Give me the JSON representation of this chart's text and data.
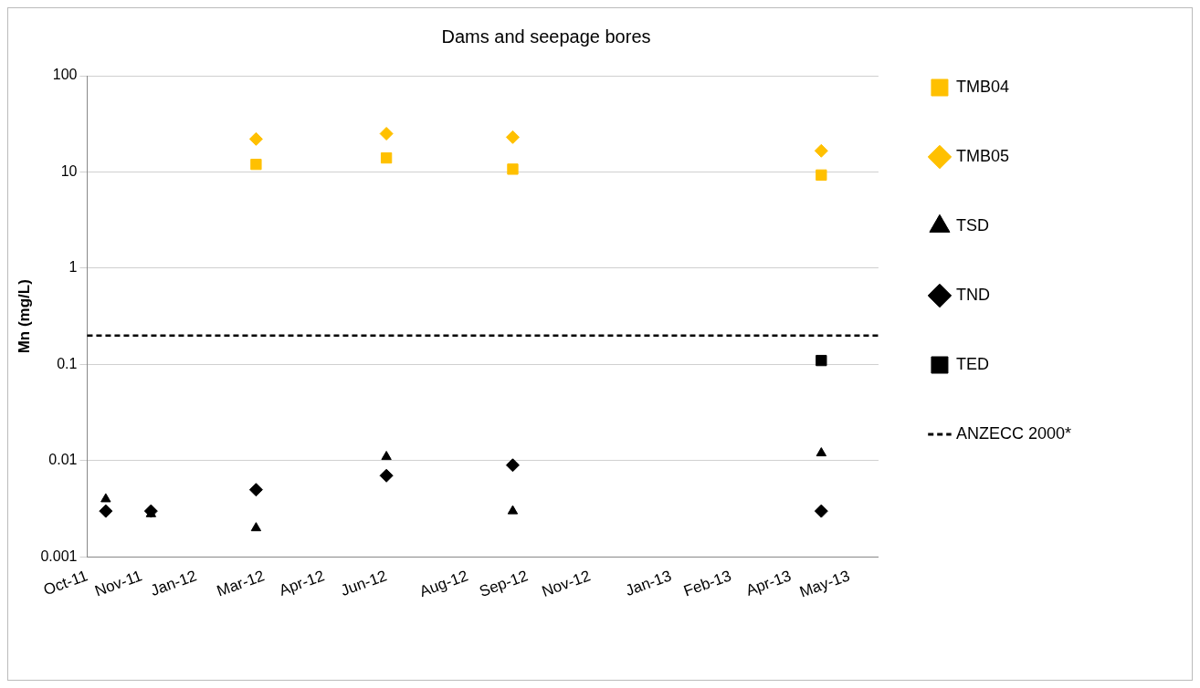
{
  "chart_data": {
    "type": "scatter",
    "title": "Dams and seepage bores",
    "ylabel": "Mn (mg/L)",
    "log": "y",
    "grid": "y",
    "legend": "right",
    "ylim": [
      0.001,
      100
    ],
    "yticks": [
      0.001,
      0.01,
      0.1,
      1,
      10,
      100
    ],
    "xlim": [
      "2011-10-20",
      "2013-06-06"
    ],
    "xticks": [
      {
        "value": "2011-10-20",
        "label": "Oct-11"
      },
      {
        "value": "2011-11-30",
        "label": "Nov-11"
      },
      {
        "value": "2012-01-10",
        "label": "Jan-12"
      },
      {
        "value": "2012-03-01",
        "label": "Mar-12"
      },
      {
        "value": "2012-04-15",
        "label": "Apr-12"
      },
      {
        "value": "2012-06-01",
        "label": "Jun-12"
      },
      {
        "value": "2012-08-01",
        "label": "Aug-12"
      },
      {
        "value": "2012-09-15",
        "label": "Sep-12"
      },
      {
        "value": "2012-11-01",
        "label": "Nov-12"
      },
      {
        "value": "2013-01-01",
        "label": "Jan-13"
      },
      {
        "value": "2013-02-15",
        "label": "Feb-13"
      },
      {
        "value": "2013-04-01",
        "label": "Apr-13"
      },
      {
        "value": "2013-05-15",
        "label": "May-13"
      }
    ],
    "series": [
      {
        "name": "TMB04",
        "color": "#ffc000",
        "marker": "square",
        "x": [
          "2012-02-24",
          "2012-06-01",
          "2012-09-04",
          "2013-04-24"
        ],
        "values": [
          12,
          14,
          10.7,
          9.3
        ]
      },
      {
        "name": "TMB05",
        "color": "#ffc000",
        "marker": "diamond",
        "x": [
          "2012-02-24",
          "2012-06-01",
          "2012-09-04",
          "2013-04-24"
        ],
        "values": [
          22,
          25,
          23,
          16.6
        ]
      },
      {
        "name": "TSD",
        "color": "#000000",
        "marker": "triangle",
        "x": [
          "2011-11-03",
          "2011-12-07",
          "2012-02-24",
          "2012-06-01",
          "2012-09-04",
          "2013-04-24"
        ],
        "values": [
          0.004,
          0.0028,
          0.002,
          0.011,
          0.003,
          0.012
        ]
      },
      {
        "name": "TND",
        "color": "#000000",
        "marker": "diamond",
        "x": [
          "2011-11-03",
          "2011-12-07",
          "2012-02-24",
          "2012-06-01",
          "2012-09-04",
          "2013-04-24"
        ],
        "values": [
          0.003,
          0.003,
          0.005,
          0.007,
          0.009,
          0.003
        ]
      },
      {
        "name": "TED",
        "color": "#000000",
        "marker": "square",
        "x": [
          "2013-04-24"
        ],
        "values": [
          0.11
        ]
      }
    ],
    "ref_lines": [
      {
        "axis": "y",
        "value": 0.2,
        "label": "ANZECC 2000*",
        "color": "#000000",
        "line_style": "dashed"
      }
    ]
  }
}
